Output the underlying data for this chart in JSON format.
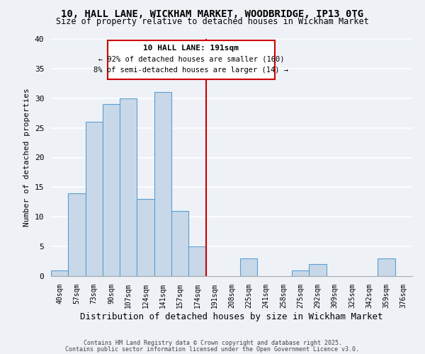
{
  "title_line1": "10, HALL LANE, WICKHAM MARKET, WOODBRIDGE, IP13 0TG",
  "title_line2": "Size of property relative to detached houses in Wickham Market",
  "xlabel": "Distribution of detached houses by size in Wickham Market",
  "ylabel": "Number of detached properties",
  "bar_labels": [
    "40sqm",
    "57sqm",
    "73sqm",
    "90sqm",
    "107sqm",
    "124sqm",
    "141sqm",
    "157sqm",
    "174sqm",
    "191sqm",
    "208sqm",
    "225sqm",
    "241sqm",
    "258sqm",
    "275sqm",
    "292sqm",
    "309sqm",
    "325sqm",
    "342sqm",
    "359sqm",
    "376sqm"
  ],
  "bar_values": [
    1,
    14,
    26,
    29,
    30,
    13,
    31,
    11,
    5,
    0,
    0,
    3,
    0,
    0,
    1,
    2,
    0,
    0,
    0,
    3,
    0
  ],
  "bar_color": "#c8d8e8",
  "bar_edge_color": "#5a9fd4",
  "vline_idx": 8.5,
  "vline_color": "#cc0000",
  "ylim": [
    0,
    40
  ],
  "yticks": [
    0,
    5,
    10,
    15,
    20,
    25,
    30,
    35,
    40
  ],
  "annotation_title": "10 HALL LANE: 191sqm",
  "annotation_line1": "← 92% of detached houses are smaller (160)",
  "annotation_line2": "8% of semi-detached houses are larger (14) →",
  "annotation_box_color": "#ffffff",
  "annotation_box_edge": "#cc0000",
  "footer_line1": "Contains HM Land Registry data © Crown copyright and database right 2025.",
  "footer_line2": "Contains public sector information licensed under the Open Government Licence v3.0.",
  "background_color": "#eef2f7",
  "grid_color": "#ffffff"
}
